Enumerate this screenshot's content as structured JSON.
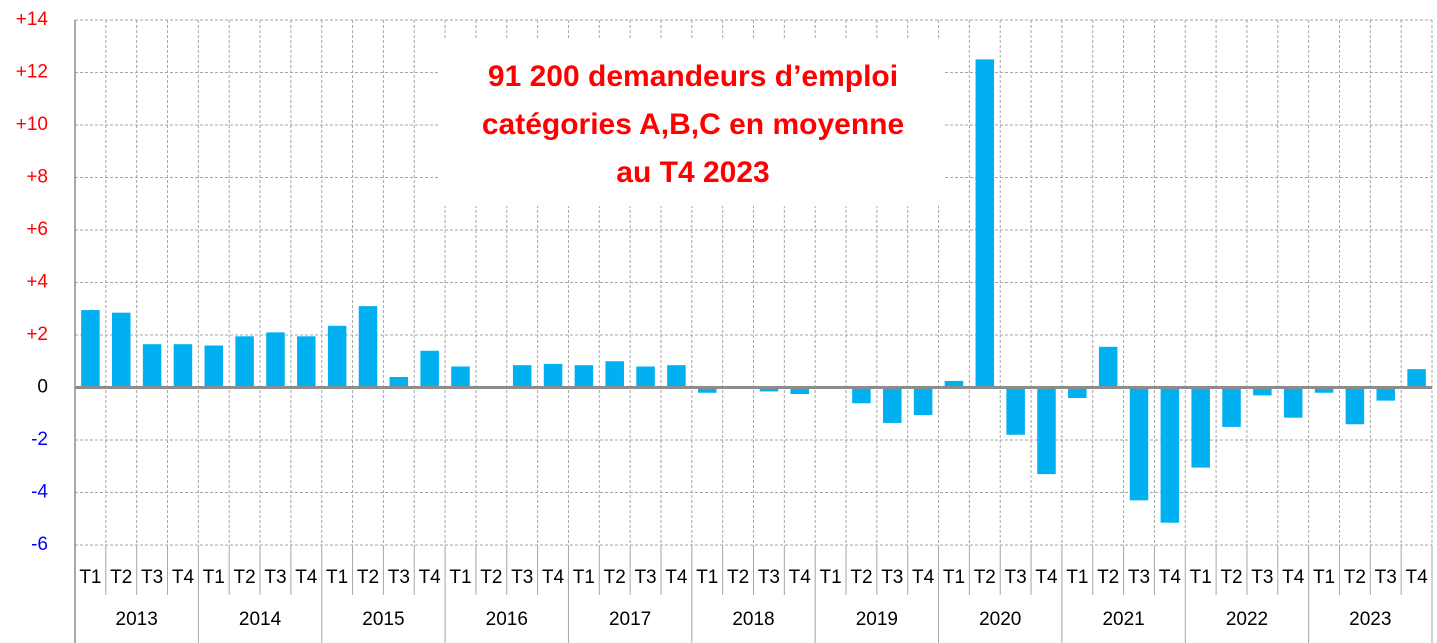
{
  "chart_data": {
    "type": "bar",
    "annotation": [
      "91 200 demandeurs d’emploi",
      "catégories A,B,C en moyenne",
      "au T4 2023"
    ],
    "categories": [
      "T1",
      "T2",
      "T3",
      "T4",
      "T1",
      "T2",
      "T3",
      "T4",
      "T1",
      "T2",
      "T3",
      "T4",
      "T1",
      "T2",
      "T3",
      "T4",
      "T1",
      "T2",
      "T3",
      "T4",
      "T1",
      "T2",
      "T3",
      "T4",
      "T1",
      "T2",
      "T3",
      "T4",
      "T1",
      "T2",
      "T3",
      "T4",
      "T1",
      "T2",
      "T3",
      "T4",
      "T1",
      "T2",
      "T3",
      "T4",
      "T1",
      "T2",
      "T3",
      "T4"
    ],
    "groups": [
      "2013",
      "2014",
      "2015",
      "2016",
      "2017",
      "2018",
      "2019",
      "2020",
      "2021",
      "2022",
      "2023"
    ],
    "values": [
      2.95,
      2.85,
      1.65,
      1.65,
      1.6,
      1.95,
      2.1,
      1.95,
      2.35,
      3.1,
      0.4,
      1.4,
      0.8,
      0,
      0.85,
      0.9,
      0.85,
      1.0,
      0.8,
      0.85,
      -0.2,
      0,
      -0.15,
      -0.25,
      -0.05,
      -0.6,
      -1.35,
      -1.05,
      0.25,
      12.5,
      -1.8,
      -3.3,
      -0.4,
      1.55,
      -4.3,
      -5.15,
      -3.05,
      -1.5,
      -0.3,
      -1.15,
      -0.2,
      -1.4,
      -0.5,
      0.7
    ],
    "color": "#00b0f0",
    "ylim": [
      -6,
      14
    ],
    "yticks": [
      {
        "value": 14,
        "label": "+14"
      },
      {
        "value": 12,
        "label": "+12"
      },
      {
        "value": 10,
        "label": "+10"
      },
      {
        "value": 8,
        "label": "+8"
      },
      {
        "value": 6,
        "label": "+6"
      },
      {
        "value": 4,
        "label": "+4"
      },
      {
        "value": 2,
        "label": "+2"
      },
      0,
      -2,
      -4,
      -6
    ],
    "grid": true
  }
}
